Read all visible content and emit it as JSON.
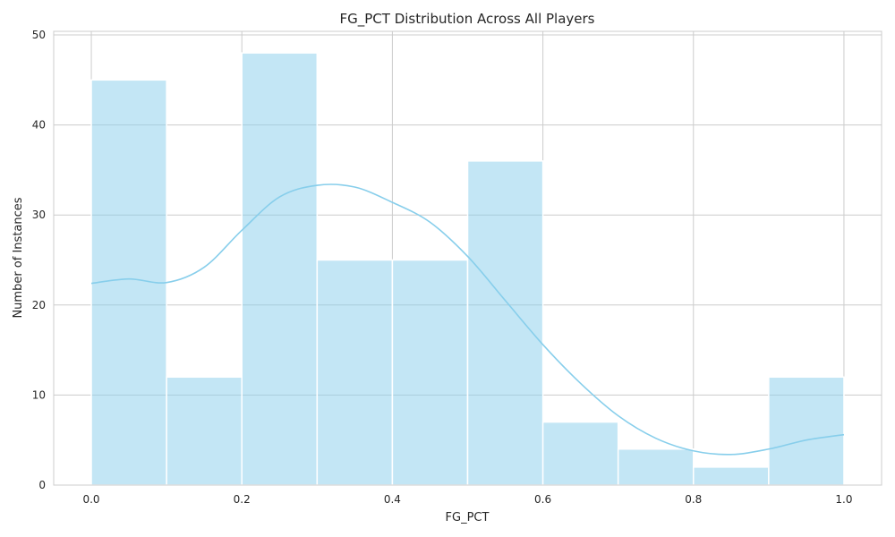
{
  "chart_data": {
    "type": "bar",
    "title": "FG_PCT Distribution Across All Players",
    "xlabel": "FG_PCT",
    "ylabel": "Number of Instances",
    "xlim": [
      -0.05,
      1.05
    ],
    "ylim": [
      0,
      50.4
    ],
    "xticks": [
      0.0,
      0.2,
      0.4,
      0.6,
      0.8,
      1.0
    ],
    "xtick_labels": [
      "0.0",
      "0.2",
      "0.4",
      "0.6",
      "0.8",
      "1.0"
    ],
    "yticks": [
      0,
      10,
      20,
      30,
      40,
      50
    ],
    "ytick_labels": [
      "0",
      "10",
      "20",
      "30",
      "40",
      "50"
    ],
    "grid": true,
    "bins": [
      {
        "x0": 0.0,
        "x1": 0.1,
        "count": 45
      },
      {
        "x0": 0.1,
        "x1": 0.2,
        "count": 12
      },
      {
        "x0": 0.2,
        "x1": 0.3,
        "count": 48
      },
      {
        "x0": 0.3,
        "x1": 0.4,
        "count": 25
      },
      {
        "x0": 0.4,
        "x1": 0.5,
        "count": 25
      },
      {
        "x0": 0.5,
        "x1": 0.6,
        "count": 36
      },
      {
        "x0": 0.6,
        "x1": 0.7,
        "count": 7
      },
      {
        "x0": 0.7,
        "x1": 0.8,
        "count": 4
      },
      {
        "x0": 0.8,
        "x1": 0.9,
        "count": 2
      },
      {
        "x0": 0.9,
        "x1": 1.0,
        "count": 12
      }
    ],
    "kde": {
      "x": [
        0.0,
        0.05,
        0.1,
        0.15,
        0.2,
        0.25,
        0.3,
        0.35,
        0.4,
        0.45,
        0.5,
        0.55,
        0.6,
        0.65,
        0.7,
        0.75,
        0.8,
        0.85,
        0.9,
        0.95,
        1.0
      ],
      "y": [
        22.4,
        22.9,
        22.5,
        24.2,
        28.3,
        32.0,
        33.3,
        33.1,
        31.4,
        29.2,
        25.4,
        20.5,
        15.6,
        11.3,
        7.7,
        5.2,
        3.8,
        3.4,
        4.0,
        5.0,
        5.6
      ]
    },
    "colors": {
      "bar_fill": "#87ceeb",
      "bar_opacity": "0.5",
      "kde_line": "#87ceeb"
    }
  }
}
